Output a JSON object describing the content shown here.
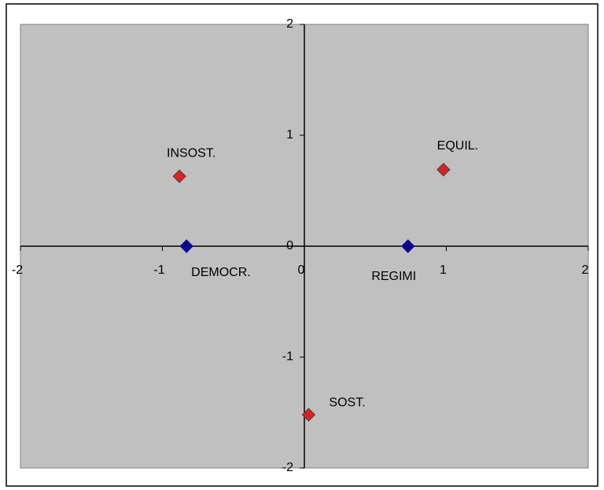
{
  "chart_data": {
    "type": "scatter",
    "xlim": [
      -2,
      2
    ],
    "ylim": [
      -2,
      2
    ],
    "xticks": [
      -2,
      -1,
      0,
      1,
      2
    ],
    "yticks": [
      -2,
      -1,
      0,
      1,
      2
    ],
    "background": "#c0c0c0",
    "series": [
      {
        "color": "#e02020",
        "x": [
          -0.88,
          0.98,
          0.03
        ],
        "y": [
          0.63,
          0.69,
          -1.52
        ],
        "labels": [
          "INSOST.",
          "EQUIL.",
          "SOST."
        ]
      },
      {
        "color": "#0a0a8c",
        "x": [
          -0.83,
          0.73
        ],
        "y": [
          0,
          0
        ],
        "labels": [
          "DEMOCR.",
          "REGIMI"
        ]
      }
    ]
  }
}
